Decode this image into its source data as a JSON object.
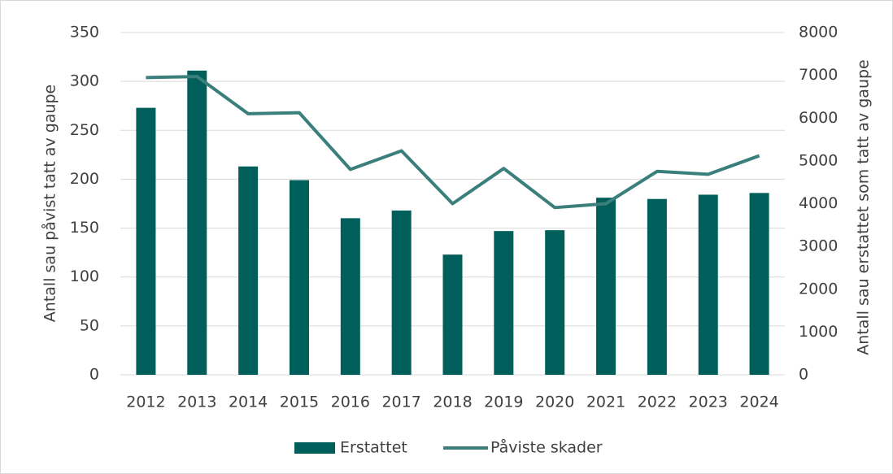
{
  "chart_data": {
    "type": "bar",
    "categories": [
      "2012",
      "2013",
      "2014",
      "2015",
      "2016",
      "2017",
      "2018",
      "2019",
      "2020",
      "2021",
      "2022",
      "2023",
      "2024"
    ],
    "series": [
      {
        "name": "Erstattet",
        "color": "#005f5a",
        "type": "bar",
        "axis": "y2",
        "values": [
          6240,
          7110,
          4870,
          4550,
          3660,
          3840,
          2810,
          3360,
          3380,
          4140,
          4110,
          4210,
          4250
        ]
      },
      {
        "name": "Påviste skader",
        "color": "#3a7f7b",
        "type": "line",
        "axis": "y",
        "values": [
          304,
          305,
          267,
          268,
          210,
          229,
          175,
          211,
          171,
          175,
          208,
          205,
          224
        ]
      }
    ],
    "ylabel": "Antall sau påvist tatt av gaupe",
    "y2label": "Antall sau erstattet som tatt av gaupe",
    "ylim": [
      0,
      350
    ],
    "yticks": [
      0,
      50,
      100,
      150,
      200,
      250,
      300,
      350
    ],
    "y2lim": [
      0,
      8000
    ],
    "y2ticks": [
      0,
      1000,
      2000,
      3000,
      4000,
      5000,
      6000,
      7000,
      8000
    ],
    "grid": true,
    "legend": "bottom"
  }
}
